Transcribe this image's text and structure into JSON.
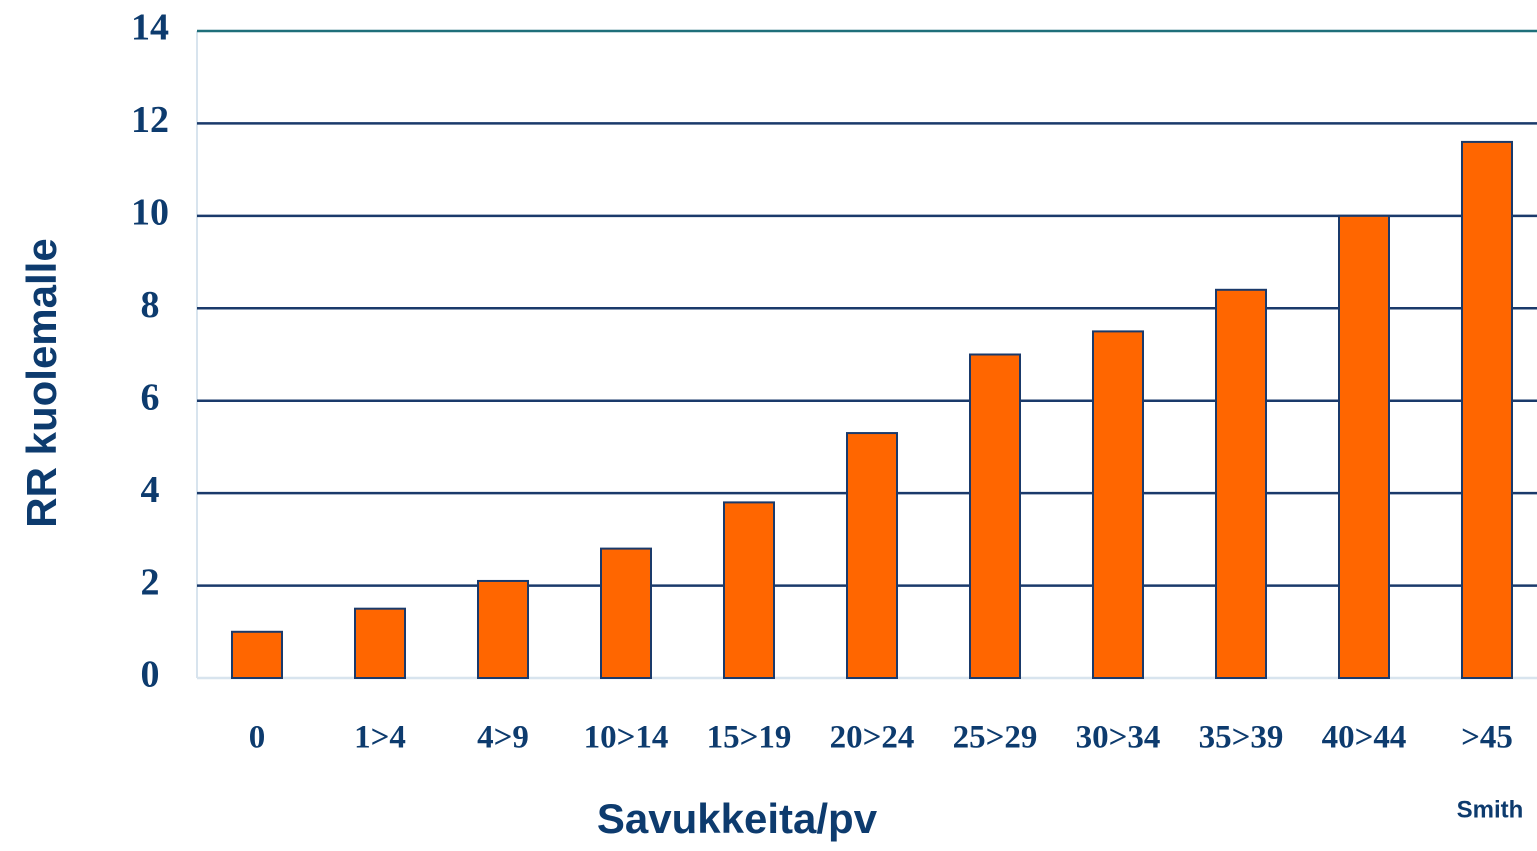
{
  "chart_data": {
    "type": "bar",
    "categories": [
      "0",
      "1>4",
      "4>9",
      "10>14",
      "15>19",
      "20>24",
      "25>29",
      "30>34",
      "35>39",
      "40>44",
      ">45"
    ],
    "values": [
      1.0,
      1.5,
      2.1,
      2.8,
      3.8,
      5.3,
      7.0,
      7.5,
      8.4,
      10.0,
      11.6
    ],
    "color": "#ff6600",
    "ylim": [
      0,
      14
    ],
    "yticks": [
      0,
      2,
      4,
      6,
      8,
      10,
      12,
      14
    ],
    "grid": true,
    "y_label": "RR kuolemalle",
    "x_label": "Savukkeita/pv",
    "annotation": "Smith"
  }
}
